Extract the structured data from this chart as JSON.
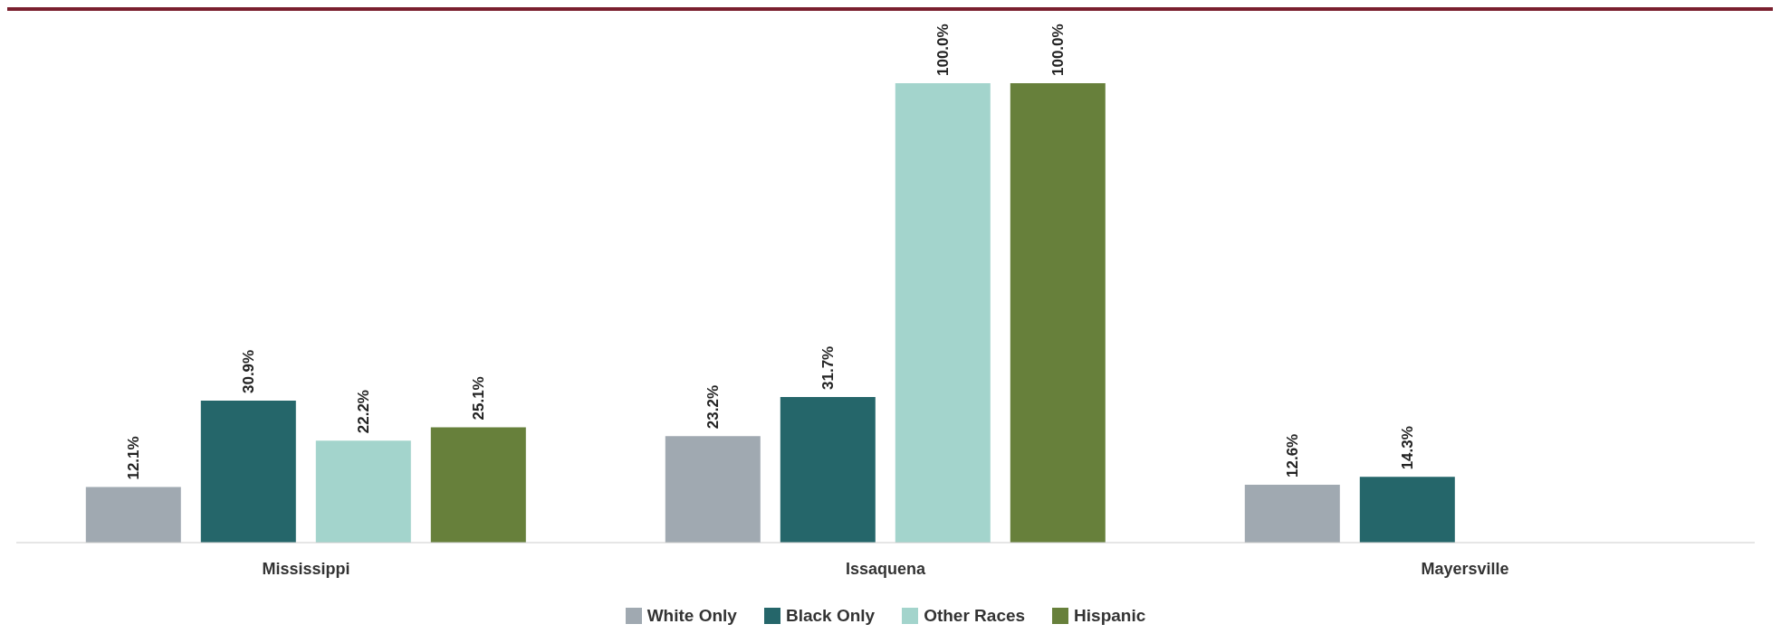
{
  "chart_data": {
    "type": "bar",
    "categories": [
      "Mississippi",
      "Issaquena",
      "Mayersville"
    ],
    "series": [
      {
        "name": "White Only",
        "color": "#a0a9b1",
        "values": [
          12.1,
          23.2,
          12.6
        ],
        "value_labels": [
          "12.1%",
          "23.2%",
          "12.6%"
        ]
      },
      {
        "name": "Black Only",
        "color": "#25666a",
        "values": [
          30.9,
          31.7,
          14.3
        ],
        "value_labels": [
          "30.9%",
          "31.7%",
          "14.3%"
        ]
      },
      {
        "name": "Other Races",
        "color": "#a3d4cc",
        "values": [
          22.2,
          100.0,
          null
        ],
        "value_labels": [
          "22.2%",
          "100.0%",
          null
        ]
      },
      {
        "name": "Hispanic",
        "color": "#67803b",
        "values": [
          25.1,
          100.0,
          null
        ],
        "value_labels": [
          "25.1%",
          "100.0%",
          null
        ]
      }
    ],
    "legend": "bottom",
    "grid": false
  }
}
